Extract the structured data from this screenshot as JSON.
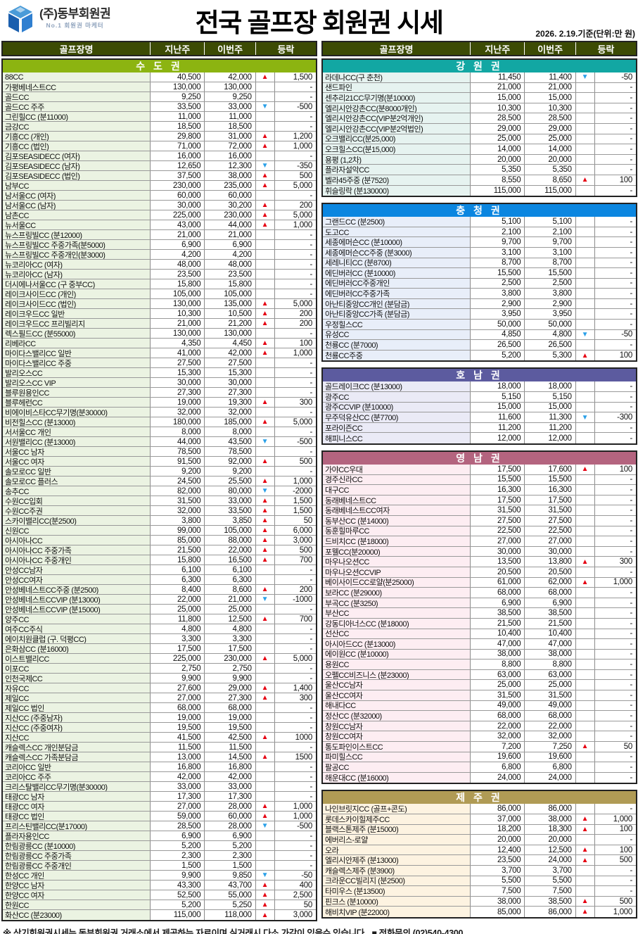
{
  "header": {
    "company": "(주)동부회원권",
    "company_sub": "No.1 회원권 마케터",
    "title": "전국 골프장 회원권 시세",
    "date_note": "2026. 2.19.기준(단위:만 원)"
  },
  "columns": [
    "골프장명",
    "지난주",
    "이번주",
    "등락"
  ],
  "colors": {
    "column_header_bg": "#3c4b04",
    "up_arrow": "#e60012",
    "down_arrow": "#2aa0e8",
    "logo_blue_dark": "#1b5fae",
    "logo_blue_light": "#4a9bd8"
  },
  "left_sections": [
    {
      "title": "수 도 권",
      "color": "#8cb411",
      "tint": "#ebf3e2",
      "rows": [
        [
          "88CC",
          "40,500",
          "42,000",
          "u",
          "1,500"
        ],
        [
          "가평베네스트CC",
          "130,000",
          "130,000",
          "",
          "-"
        ],
        [
          "골드CC",
          "9,250",
          "9,250",
          "",
          "-"
        ],
        [
          "골드CC 주주",
          "33,500",
          "33,000",
          "d",
          "-500"
        ],
        [
          "그린힐CC (분11000)",
          "11,000",
          "11,000",
          "",
          "-"
        ],
        [
          "금강CC",
          "18,500",
          "18,500",
          "",
          "-"
        ],
        [
          "기흥CC (개인)",
          "29,800",
          "31,000",
          "u",
          "1,200"
        ],
        [
          "기흥CC (법인)",
          "71,000",
          "72,000",
          "u",
          "1,000"
        ],
        [
          "김포SEASIDECC (여자)",
          "16,000",
          "16,000",
          "",
          "-"
        ],
        [
          "김포SEASIDECC (남자)",
          "12,650",
          "12,300",
          "d",
          "-350"
        ],
        [
          "김포SEASIDECC (법인)",
          "37,500",
          "38,000",
          "u",
          "500"
        ],
        [
          "남부CC",
          "230,000",
          "235,000",
          "u",
          "5,000"
        ],
        [
          "남서울CC (여자)",
          "60,000",
          "60,000",
          "",
          "-"
        ],
        [
          "남서울CC (남자)",
          "30,000",
          "30,200",
          "u",
          "200"
        ],
        [
          "남촌CC",
          "225,000",
          "230,000",
          "u",
          "5,000"
        ],
        [
          "뉴서울CC",
          "43,000",
          "44,000",
          "u",
          "1,000"
        ],
        [
          "뉴스프링빌CC (분12000)",
          "21,000",
          "21,000",
          "",
          "-"
        ],
        [
          "뉴스프링빌CC 주중가족(분5000)",
          "6,900",
          "6,900",
          "",
          "-"
        ],
        [
          "뉴스프링빌CC 주중개인(분3000)",
          "4,200",
          "4,200",
          "",
          "-"
        ],
        [
          "뉴코리아CC (여자)",
          "48,000",
          "48,000",
          "",
          "-"
        ],
        [
          "뉴코리아CC (남자)",
          "23,500",
          "23,500",
          "",
          "-"
        ],
        [
          "더시에나서울CC (구 중부CC)",
          "15,800",
          "15,800",
          "",
          "-"
        ],
        [
          "레이크사이드CC (개인)",
          "105,000",
          "105,000",
          "",
          "-"
        ],
        [
          "레이크사이드CC (법인)",
          "130,000",
          "135,000",
          "u",
          "5,000"
        ],
        [
          "레이크우드CC 일반",
          "10,300",
          "10,500",
          "u",
          "200"
        ],
        [
          "레이크우드CC 프리빌리지",
          "21,000",
          "21,200",
          "u",
          "200"
        ],
        [
          "렉스필드CC (분55000)",
          "130,000",
          "130,000",
          "",
          "-"
        ],
        [
          "리베라CC",
          "4,350",
          "4,450",
          "u",
          "100"
        ],
        [
          "마이다스밸리CC 일반",
          "41,000",
          "42,000",
          "u",
          "1,000"
        ],
        [
          "마이다스밸리CC 주중",
          "27,500",
          "27,500",
          "",
          "-"
        ],
        [
          "발리오스CC",
          "15,300",
          "15,300",
          "",
          "-"
        ],
        [
          "발리오스CC VIP",
          "30,000",
          "30,000",
          "",
          "-"
        ],
        [
          "블루원용인CC",
          "27,300",
          "27,300",
          "",
          "-"
        ],
        [
          "블루헤런CC",
          "19,000",
          "19,300",
          "u",
          "300"
        ],
        [
          "비에이비스타CC무기명(분30000)",
          "32,000",
          "32,000",
          "",
          "-"
        ],
        [
          "비전힐스CC (분13000)",
          "180,000",
          "185,000",
          "u",
          "5,000"
        ],
        [
          "서서울CC 개인",
          "8,000",
          "8,000",
          "",
          "-"
        ],
        [
          "서원밸리CC (분13000)",
          "44,000",
          "43,500",
          "d",
          "-500"
        ],
        [
          "서울CC 남자",
          "78,500",
          "78,500",
          "",
          "-"
        ],
        [
          "서울CC 여자",
          "91,500",
          "92,000",
          "u",
          "500"
        ],
        [
          "솔모로CC 일반",
          "9,200",
          "9,200",
          "",
          "-"
        ],
        [
          "솔모로CC 플러스",
          "24,500",
          "25,500",
          "u",
          "1,000"
        ],
        [
          "송추CC",
          "82,000",
          "80,000",
          "d",
          "-2000"
        ],
        [
          "수원CC입회",
          "31,500",
          "33,000",
          "u",
          "1,500"
        ],
        [
          "수원CC주권",
          "32,000",
          "33,500",
          "u",
          "1,500"
        ],
        [
          "스카이밸리CC(분2500)",
          "3,800",
          "3,850",
          "u",
          "50"
        ],
        [
          "신원CC",
          "99,000",
          "105,000",
          "u",
          "6,000"
        ],
        [
          "아시아나CC",
          "85,000",
          "88,000",
          "u",
          "3,000"
        ],
        [
          "아시아나CC 주중가족",
          "21,500",
          "22,000",
          "u",
          "500"
        ],
        [
          "아시아나CC 주중개인",
          "15,800",
          "16,500",
          "u",
          "700"
        ],
        [
          "안성CC남자",
          "6,100",
          "6,100",
          "",
          "-"
        ],
        [
          "안성CC여자",
          "6,300",
          "6,300",
          "",
          "-"
        ],
        [
          "안성베네스트CC주중 (분2500)",
          "8,400",
          "8,600",
          "u",
          "200"
        ],
        [
          "안성베네스트CCVIP (분13000)",
          "22,000",
          "21,000",
          "d",
          "-1000"
        ],
        [
          "안성베네스트CCVIP (분15000)",
          "25,000",
          "25,000",
          "",
          "-"
        ],
        [
          "양주CC",
          "11,800",
          "12,500",
          "u",
          "700"
        ],
        [
          "여주CC주식",
          "4,800",
          "4,800",
          "",
          "-"
        ],
        [
          "에이치원클럽 (구. 덕평CC)",
          "3,300",
          "3,300",
          "",
          "-"
        ],
        [
          "은화삼CC (분16000)",
          "17,500",
          "17,500",
          "",
          "-"
        ],
        [
          "이스트밸리CC",
          "225,000",
          "230,000",
          "u",
          "5,000"
        ],
        [
          "이포CC",
          "2,750",
          "2,750",
          "",
          "-"
        ],
        [
          "인천국제CC",
          "9,900",
          "9,900",
          "",
          "-"
        ],
        [
          "자유CC",
          "27,600",
          "29,000",
          "u",
          "1,400"
        ],
        [
          "제일CC",
          "27,000",
          "27,300",
          "u",
          "300"
        ],
        [
          "제일CC 법인",
          "68,000",
          "68,000",
          "",
          "-"
        ],
        [
          "지산CC (주중남자)",
          "19,000",
          "19,000",
          "",
          "-"
        ],
        [
          "지산CC (주중여자)",
          "19,500",
          "19,500",
          "",
          "-"
        ],
        [
          "지산CC",
          "41,500",
          "42,500",
          "u",
          "1000"
        ],
        [
          "캐슬렉스CC 개인분담금",
          "11,500",
          "11,500",
          "",
          "-"
        ],
        [
          "캐슬렉스CC 가족분담금",
          "13,000",
          "14,500",
          "u",
          "1500"
        ],
        [
          "코리아CC 일반",
          "16,800",
          "16,800",
          "",
          "-"
        ],
        [
          "코리아CC 주주",
          "42,000",
          "42,000",
          "",
          "-"
        ],
        [
          "크리스탈밸리CC무기명(분30000)",
          "33,000",
          "33,000",
          "",
          "-"
        ],
        [
          "태광CC 남자",
          "17,300",
          "17,300",
          "",
          "-"
        ],
        [
          "태광CC 여자",
          "27,000",
          "28,000",
          "u",
          "1,000"
        ],
        [
          "태광CC 법인",
          "59,000",
          "60,000",
          "u",
          "1,000"
        ],
        [
          "프리스틴밸리CC(분17000)",
          "28,500",
          "28,000",
          "d",
          "-500"
        ],
        [
          "플라자용인CC",
          "6,900",
          "6,900",
          "",
          "-"
        ],
        [
          "한림광릉CC (분10000)",
          "5,200",
          "5,200",
          "",
          "-"
        ],
        [
          "한림광릉CC 주중가족",
          "2,300",
          "2,300",
          "",
          "-"
        ],
        [
          "한림광릉CC 주중개인",
          "1,500",
          "1,500",
          "",
          "-"
        ],
        [
          "한성CC 개인",
          "9,900",
          "9,850",
          "d",
          "-50"
        ],
        [
          "한양CC 남자",
          "43,300",
          "43,700",
          "u",
          "400"
        ],
        [
          "한양CC 여자",
          "52,500",
          "55,000",
          "u",
          "2,500"
        ],
        [
          "한원CC",
          "5,200",
          "5,250",
          "u",
          "50"
        ],
        [
          "화산CC (분23000)",
          "115,000",
          "118,000",
          "u",
          "3,000"
        ]
      ]
    }
  ],
  "right_sections": [
    {
      "title": "강 원 권",
      "color": "#12a7a3",
      "tint": "#e6f3f0",
      "rows": [
        [
          "라데나CC(구 춘천)",
          "11,450",
          "11,400",
          "d",
          "-50"
        ],
        [
          "샌드파인",
          "21,000",
          "21,000",
          "",
          "-"
        ],
        [
          "센추리21CC무기명(분10000)",
          "15,000",
          "15,000",
          "",
          "-"
        ],
        [
          "엘리시안강촌CC(분8000개인)",
          "10,300",
          "10,300",
          "",
          "-"
        ],
        [
          "엘리시안강촌CC(VIP분2억개인)",
          "28,500",
          "28,500",
          "",
          "-"
        ],
        [
          "엘리시안강촌CC(VIP분2억법인)",
          "29,000",
          "29,000",
          "",
          "-"
        ],
        [
          "오크밸리CC(분25,000)",
          "25,000",
          "25,000",
          "",
          "-"
        ],
        [
          "오크힐스CC(분15,000)",
          "14,000",
          "14,000",
          "",
          "-"
        ],
        [
          "용평 (1,2차)",
          "20,000",
          "20,000",
          "",
          "-"
        ],
        [
          "플라자설악CC",
          "5,350",
          "5,350",
          "",
          "-"
        ],
        [
          "벨라45주중 (분7520)",
          "8,550",
          "8,650",
          "u",
          "100"
        ],
        [
          "휘슬링락 (분130000)",
          "115,000",
          "115,000",
          "",
          "-"
        ]
      ]
    },
    {
      "title": "충 청 권",
      "color": "#0b86e0",
      "tint": "#e8eef9",
      "rows": [
        [
          "그랜드CC (분2500)",
          "5,100",
          "5,100",
          "",
          "-"
        ],
        [
          "도고CC",
          "2,100",
          "2,100",
          "",
          "-"
        ],
        [
          "세종에머슨CC (분10000)",
          "9,700",
          "9,700",
          "",
          "-"
        ],
        [
          "세종에머슨CC주중 (분3000)",
          "3,100",
          "3,100",
          "",
          "-"
        ],
        [
          "세레니티CC (분8700)",
          "8,700",
          "8,700",
          "",
          "-"
        ],
        [
          "에딘버러CC (분10000)",
          "15,500",
          "15,500",
          "",
          "-"
        ],
        [
          "에딘버러CC주중개인",
          "2,500",
          "2,500",
          "",
          "-"
        ],
        [
          "에딘버러CC주중가족",
          "3,800",
          "3,800",
          "",
          "-"
        ],
        [
          "아난티중앙CC개인 (분담금)",
          "2,900",
          "2,900",
          "",
          "-"
        ],
        [
          "아난티중앙CC가족 (분담금)",
          "3,950",
          "3,950",
          "",
          "-"
        ],
        [
          "우정힐스CC",
          "50,000",
          "50,000",
          "",
          "-"
        ],
        [
          "유성CC",
          "4,850",
          "4,800",
          "d",
          "-50"
        ],
        [
          "천룡CC (분7000)",
          "26,500",
          "26,500",
          "",
          "-"
        ],
        [
          "천룡CC주중",
          "5,200",
          "5,300",
          "u",
          "100"
        ]
      ]
    },
    {
      "title": "호 남 권",
      "color": "#5c5b9f",
      "tint": "#eaeaf6",
      "rows": [
        [
          "골드레이크CC (분13000)",
          "18,000",
          "18,000",
          "",
          "-"
        ],
        [
          "광주CC",
          "5,150",
          "5,150",
          "",
          "-"
        ],
        [
          "광주CCVIP (분10000)",
          "15,000",
          "15,000",
          "",
          "-"
        ],
        [
          "무주덕유산CC (분7700)",
          "11,600",
          "11,300",
          "d",
          "-300"
        ],
        [
          "포라이즌CC",
          "11,200",
          "11,200",
          "",
          "-"
        ],
        [
          "해피니스CC",
          "12,000",
          "12,000",
          "",
          "-"
        ]
      ]
    },
    {
      "title": "영 남 권",
      "color": "#b4647f",
      "tint": "#fdedf2",
      "rows": [
        [
          "가야CC우대",
          "17,500",
          "17,600",
          "u",
          "100"
        ],
        [
          "경주신라CC",
          "15,500",
          "15,500",
          "",
          "-"
        ],
        [
          "대구CC",
          "16,300",
          "16,300",
          "",
          "-"
        ],
        [
          "동래베네스트CC",
          "17,500",
          "17,500",
          "",
          "-"
        ],
        [
          "동래베네스트CC여자",
          "31,500",
          "31,500",
          "",
          "-"
        ],
        [
          "동부산CC (분14000)",
          "27,500",
          "27,500",
          "",
          "-"
        ],
        [
          "동훈힐마루CC",
          "22,500",
          "22,500",
          "",
          "-"
        ],
        [
          "드비치CC (분18000)",
          "27,000",
          "27,000",
          "",
          "-"
        ],
        [
          "포웰CC(분20000)",
          "30,000",
          "30,000",
          "",
          "-"
        ],
        [
          "마우나오션CC",
          "13,500",
          "13,800",
          "u",
          "300"
        ],
        [
          "마우나오션CCVIP",
          "20,500",
          "20,500",
          "",
          "-"
        ],
        [
          "베이사이드CC로얄(분25000)",
          "61,000",
          "62,000",
          "u",
          "1,000"
        ],
        [
          "보라CC (분29000)",
          "68,000",
          "68,000",
          "",
          "-"
        ],
        [
          "부곡CC (분3250)",
          "6,900",
          "6,900",
          "",
          "-"
        ],
        [
          "부산CC",
          "38,500",
          "38,500",
          "",
          "-"
        ],
        [
          "강동디아너스CC (분18000)",
          "21,500",
          "21,500",
          "",
          "-"
        ],
        [
          "선산CC",
          "10,400",
          "10,400",
          "",
          "-"
        ],
        [
          "아시아드CC (분13000)",
          "47,000",
          "47,000",
          "",
          "-"
        ],
        [
          "에이원CC (분10000)",
          "38,000",
          "38,000",
          "",
          "-"
        ],
        [
          "용원CC",
          "8,800",
          "8,800",
          "",
          "-"
        ],
        [
          "오펠CC비즈니스 (분23000)",
          "63,000",
          "63,000",
          "",
          "-"
        ],
        [
          "울산CC남자",
          "25,000",
          "25,000",
          "",
          "-"
        ],
        [
          "울산CC여자",
          "31,500",
          "31,500",
          "",
          "-"
        ],
        [
          "해내다CC",
          "49,000",
          "49,000",
          "",
          "-"
        ],
        [
          "정산CC (분32000)",
          "68,000",
          "68,000",
          "",
          "-"
        ],
        [
          "창원CC남자",
          "22,000",
          "22,000",
          "",
          "-"
        ],
        [
          "창원CC여자",
          "32,000",
          "32,000",
          "",
          "-"
        ],
        [
          "통도파인이스트CC",
          "7,200",
          "7,250",
          "u",
          "50"
        ],
        [
          "파미힐스CC",
          "19,600",
          "19,600",
          "",
          "-"
        ],
        [
          "팔공CC",
          "6,800",
          "6,800",
          "",
          "-"
        ],
        [
          "해운대CC (분16000)",
          "24,000",
          "24,000",
          "",
          "-"
        ]
      ]
    },
    {
      "title": "제 주 권",
      "color": "#b09b55",
      "tint": "#fdf3e1",
      "rows": [
        [
          "나인브릿지CC (골프+콘도)",
          "86,000",
          "86,000",
          "",
          "-"
        ],
        [
          "롯데스카이힐제주CC",
          "37,000",
          "38,000",
          "u",
          "1,000"
        ],
        [
          "블랙스톤제주 (분15000)",
          "18,200",
          "18,300",
          "u",
          "100"
        ],
        [
          "에버리스-로얄",
          "20,000",
          "20,000",
          "",
          "-"
        ],
        [
          "오라",
          "12,400",
          "12,500",
          "u",
          "100"
        ],
        [
          "엘리시안제주 (분13000)",
          "23,500",
          "24,000",
          "u",
          "500"
        ],
        [
          "캐슬렉스제주 (분3900)",
          "3,700",
          "3,700",
          "",
          "-"
        ],
        [
          "크라운CC빌리지 (분2500)",
          "5,500",
          "5,500",
          "",
          "-"
        ],
        [
          "타미우스 (분13500)",
          "7,500",
          "7,500",
          "",
          "-"
        ],
        [
          "핀크스 (분10000)",
          "38,000",
          "38,500",
          "u",
          "500"
        ],
        [
          "해비치VIP (분22000)",
          "85,000",
          "86,000",
          "u",
          "1,000"
        ]
      ]
    }
  ],
  "footer": {
    "disclaimer": "※ 상기회원권시세는 동부회원권 거래소에서 제공하는 자료이며 실거래시 다소 가감이 있을수 있습니다.",
    "phone": "■ 전화문의 (02)540-4300"
  }
}
